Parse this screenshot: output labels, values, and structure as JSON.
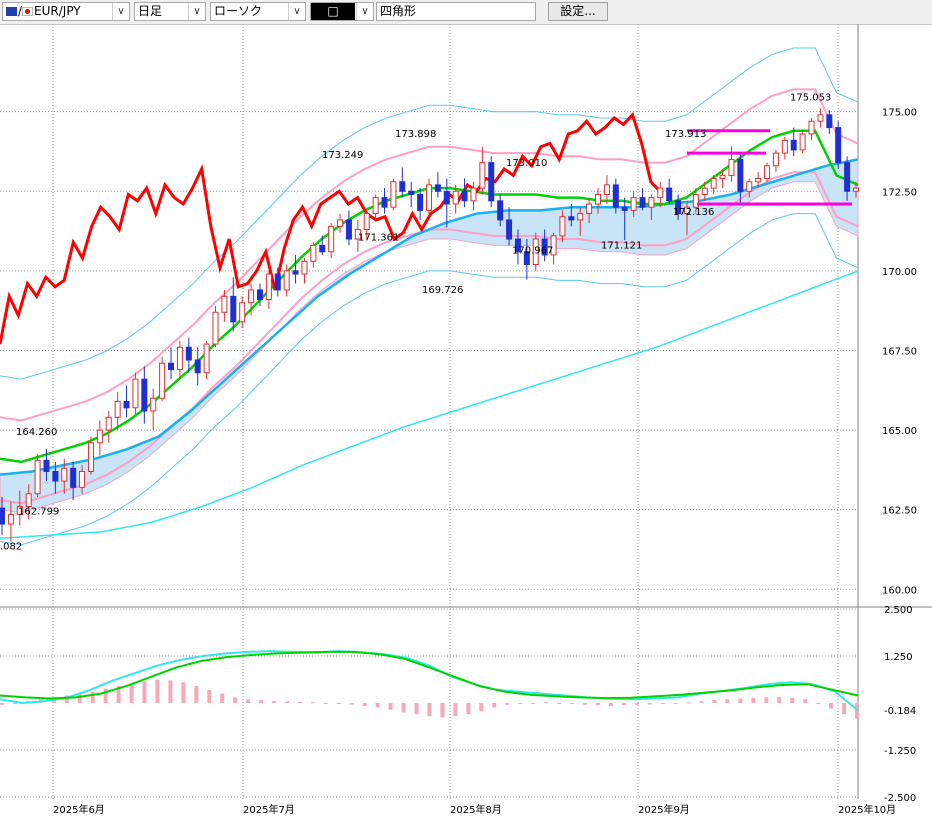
{
  "toolbar": {
    "symbol": "EUR/JPY",
    "timeframe": "日足",
    "chart_style": "ローソク",
    "draw_tool": "□",
    "shape_name": "四角形",
    "settings_label": "設定..."
  },
  "colors": {
    "price_line": "#ff0000",
    "bb_outer": "#5bc8f0",
    "bb_inner": "#ff9ec6",
    "mid_line": "#00d200",
    "base_line": "#1ab0f0",
    "long_ma": "#33e6ee",
    "cloud": "#c9e3f7",
    "bull_candle": "#e03030",
    "bear_candle": "#2030d0",
    "marker": "#ff00dd",
    "macd_hist": "#f6aab8"
  },
  "price_axis": {
    "labels": [
      "175.00",
      "172.50",
      "170.00",
      "167.50",
      "165.00",
      "162.50",
      "160.00"
    ]
  },
  "osc_axis": {
    "labels": [
      "2.500",
      "1.250",
      "-0.184",
      "-1.250",
      "-2.500"
    ]
  },
  "date_axis": {
    "labels": [
      "2025年6月",
      "2025年7月",
      "2025年8月",
      "2025年9月",
      "2025年10月"
    ]
  },
  "annotations": [
    "164.260",
    "162.799",
    ".082",
    "173.249",
    "173.898",
    "171.361",
    "173.010",
    "170.967",
    "169.726",
    "171.121",
    "173.913",
    "172.136",
    "175.053"
  ],
  "chart_data": [
    {
      "type": "candlestick",
      "title": "",
      "symbol": "EUR/JPY",
      "x_labels": [
        "2025年6月",
        "2025年7月",
        "2025年8月",
        "2025年9月",
        "2025年10月"
      ],
      "y_ticks": [
        175.0,
        172.5,
        170.0,
        167.5,
        165.0,
        162.5,
        160.0
      ],
      "ylim": [
        159.6,
        177.0
      ],
      "marked_points": [
        {
          "label": "164.260",
          "value": 164.26
        },
        {
          "label": "162.799",
          "value": 162.799
        },
        {
          "label": "173.249",
          "value": 173.249
        },
        {
          "label": "173.898",
          "value": 173.898
        },
        {
          "label": "171.361",
          "value": 171.361
        },
        {
          "label": "173.010",
          "value": 173.01
        },
        {
          "label": "170.967",
          "value": 170.967
        },
        {
          "label": "169.726",
          "value": 169.726
        },
        {
          "label": "171.121",
          "value": 171.121
        },
        {
          "label": "173.913",
          "value": 173.913
        },
        {
          "label": "172.136",
          "value": 172.136
        },
        {
          "label": "175.053",
          "value": 175.053
        }
      ],
      "candles": [
        [
          162.55,
          162.9,
          161.7,
          162.05
        ],
        [
          162.05,
          162.75,
          161.5,
          162.35
        ],
        [
          162.35,
          163.1,
          162.0,
          162.6
        ],
        [
          162.6,
          163.3,
          162.2,
          163.0
        ],
        [
          163.0,
          164.26,
          162.9,
          164.05
        ],
        [
          164.05,
          164.4,
          163.4,
          163.7
        ],
        [
          163.7,
          164.0,
          163.0,
          163.4
        ],
        [
          163.4,
          164.1,
          163.0,
          163.8
        ],
        [
          163.8,
          164.0,
          162.799,
          163.2
        ],
        [
          163.2,
          163.9,
          163.0,
          163.7
        ],
        [
          163.7,
          164.8,
          163.6,
          164.6
        ],
        [
          164.6,
          165.3,
          164.2,
          165.0
        ],
        [
          165.0,
          165.6,
          164.6,
          165.4
        ],
        [
          165.4,
          166.2,
          165.0,
          165.9
        ],
        [
          165.9,
          166.4,
          165.4,
          165.7
        ],
        [
          165.7,
          166.8,
          165.5,
          166.6
        ],
        [
          166.6,
          167.0,
          165.2,
          165.6
        ],
        [
          165.6,
          166.3,
          165.0,
          166.0
        ],
        [
          166.0,
          167.3,
          165.9,
          167.1
        ],
        [
          167.1,
          167.6,
          166.6,
          166.9
        ],
        [
          166.9,
          167.8,
          166.6,
          167.6
        ],
        [
          167.6,
          167.9,
          166.8,
          167.2
        ],
        [
          167.2,
          167.6,
          166.4,
          166.8
        ],
        [
          166.8,
          167.8,
          166.6,
          167.7
        ],
        [
          167.7,
          168.9,
          167.6,
          168.7
        ],
        [
          168.7,
          169.4,
          168.4,
          169.2
        ],
        [
          169.2,
          169.8,
          168.1,
          168.4
        ],
        [
          168.4,
          169.2,
          168.2,
          169.0
        ],
        [
          169.0,
          169.6,
          168.6,
          169.4
        ],
        [
          169.4,
          169.6,
          168.9,
          169.1
        ],
        [
          169.1,
          170.0,
          168.8,
          169.9
        ],
        [
          169.9,
          170.1,
          169.2,
          169.4
        ],
        [
          169.4,
          170.2,
          169.2,
          170.0
        ],
        [
          170.0,
          170.5,
          169.6,
          169.9
        ],
        [
          169.9,
          170.4,
          169.6,
          170.3
        ],
        [
          170.3,
          170.9,
          170.1,
          170.8
        ],
        [
          170.8,
          171.1,
          170.5,
          170.6
        ],
        [
          170.6,
          171.5,
          170.4,
          171.4
        ],
        [
          171.4,
          171.8,
          171.2,
          171.6
        ],
        [
          171.6,
          171.9,
          170.8,
          171.0
        ],
        [
          171.0,
          171.6,
          170.6,
          171.3
        ],
        [
          171.3,
          171.9,
          171.0,
          171.8
        ],
        [
          171.8,
          172.4,
          171.6,
          172.3
        ],
        [
          172.3,
          172.6,
          171.8,
          172.0
        ],
        [
          172.0,
          172.9,
          171.9,
          172.8
        ],
        [
          172.8,
          173.249,
          172.3,
          172.5
        ],
        [
          172.5,
          172.8,
          172.0,
          172.4
        ],
        [
          172.4,
          172.6,
          171.6,
          171.9
        ],
        [
          171.9,
          172.9,
          171.7,
          172.7
        ],
        [
          172.7,
          173.1,
          172.3,
          172.5
        ],
        [
          172.5,
          172.9,
          171.361,
          172.1
        ],
        [
          172.1,
          172.7,
          171.8,
          172.5
        ],
        [
          172.5,
          172.9,
          172.0,
          172.2
        ],
        [
          172.2,
          172.8,
          171.9,
          172.6
        ],
        [
          172.6,
          173.898,
          172.4,
          173.4
        ],
        [
          173.4,
          173.6,
          172.0,
          172.2
        ],
        [
          172.2,
          172.4,
          171.4,
          171.6
        ],
        [
          171.6,
          172.0,
          170.8,
          171.0
        ],
        [
          171.0,
          171.3,
          170.2,
          170.6
        ],
        [
          170.6,
          171.0,
          169.726,
          170.2
        ],
        [
          170.2,
          171.2,
          170.0,
          171.0
        ],
        [
          171.0,
          171.3,
          170.3,
          170.5
        ],
        [
          170.5,
          171.2,
          170.2,
          171.1
        ],
        [
          171.1,
          171.9,
          170.9,
          171.7
        ],
        [
          171.7,
          172.1,
          171.4,
          171.6
        ],
        [
          171.6,
          172.0,
          171.1,
          171.8
        ],
        [
          171.8,
          172.3,
          171.5,
          172.1
        ],
        [
          172.1,
          172.6,
          171.8,
          172.4
        ],
        [
          172.4,
          173.01,
          172.1,
          172.7
        ],
        [
          172.7,
          172.9,
          171.8,
          172.0
        ],
        [
          172.0,
          172.3,
          170.967,
          171.9
        ],
        [
          171.9,
          172.5,
          171.7,
          172.3
        ],
        [
          172.3,
          172.6,
          171.9,
          172.0
        ],
        [
          172.0,
          172.4,
          171.6,
          172.3
        ],
        [
          172.3,
          172.8,
          172.0,
          172.6
        ],
        [
          172.6,
          172.9,
          172.1,
          172.2
        ],
        [
          172.2,
          172.4,
          171.6,
          171.8
        ],
        [
          171.8,
          172.2,
          171.121,
          172.0
        ],
        [
          172.0,
          172.6,
          171.8,
          172.4
        ],
        [
          172.4,
          172.8,
          172.2,
          172.6
        ],
        [
          172.6,
          173.0,
          172.4,
          172.9
        ],
        [
          172.9,
          173.2,
          172.6,
          173.0
        ],
        [
          173.0,
          173.913,
          172.8,
          173.5
        ],
        [
          173.5,
          173.7,
          172.136,
          172.5
        ],
        [
          172.5,
          172.9,
          172.3,
          172.8
        ],
        [
          172.8,
          173.1,
          172.6,
          172.9
        ],
        [
          172.9,
          173.4,
          172.8,
          173.3
        ],
        [
          173.3,
          173.8,
          173.1,
          173.7
        ],
        [
          173.7,
          174.2,
          173.5,
          174.1
        ],
        [
          174.1,
          174.5,
          173.6,
          173.8
        ],
        [
          173.8,
          174.4,
          173.7,
          174.3
        ],
        [
          174.3,
          174.8,
          174.1,
          174.7
        ],
        [
          174.7,
          175.1,
          174.5,
          174.9
        ],
        [
          174.9,
          175.053,
          174.3,
          174.5
        ],
        [
          174.5,
          174.7,
          173.2,
          173.4
        ],
        [
          173.4,
          173.6,
          172.2,
          172.5
        ],
        [
          172.5,
          172.8,
          172.3,
          172.6
        ]
      ],
      "series": [
        {
          "name": "",
          "color": "#ff0000",
          "values": [
            167.7,
            169.2,
            168.6,
            169.6,
            169.2,
            169.8,
            169.5,
            169.7,
            170.9,
            170.4,
            171.4,
            172.0,
            171.7,
            171.3,
            172.4,
            172.2,
            172.6,
            171.8,
            172.7,
            172.3,
            172.1,
            172.6,
            173.2,
            171.4,
            170.1,
            171.0,
            169.5,
            169.6,
            170.0,
            170.6,
            169.4,
            170.7,
            171.6,
            172.0,
            171.4,
            172.1,
            172.3,
            172.5,
            172.1,
            172.3,
            171.8,
            171.6,
            171.7,
            171.0,
            171.2,
            171.8,
            171.3,
            171.8,
            172.0,
            172.4,
            172.2,
            172.7,
            172.5,
            172.9,
            172.8,
            173.2,
            173.0,
            173.6,
            173.3,
            173.9,
            174.0,
            173.5,
            174.3,
            174.4,
            174.7,
            174.3,
            174.5,
            174.8,
            174.6,
            174.9,
            174.0,
            172.8,
            172.5
          ]
        },
        {
          "name": "",
          "color": "#00d200",
          "values": [
            164.1,
            164.0,
            164.2,
            164.4,
            164.6,
            164.9,
            165.3,
            165.8,
            166.4,
            167.0,
            167.7,
            168.3,
            169.0,
            169.7,
            170.4,
            171.0,
            171.5,
            171.9,
            172.2,
            172.4,
            172.6,
            172.6,
            172.5,
            172.4,
            172.4,
            172.4,
            172.3,
            172.3,
            172.2,
            172.2,
            172.1,
            172.1,
            172.3,
            172.8,
            173.3,
            173.8,
            174.2,
            174.4,
            174.4,
            173.0,
            172.7
          ]
        },
        {
          "name": "",
          "color": "#1ab0f0",
          "values": [
            163.6,
            163.7,
            163.9,
            164.1,
            164.4,
            164.8,
            165.6,
            166.5,
            167.4,
            168.3,
            169.2,
            169.9,
            170.5,
            171.1,
            171.5,
            171.8,
            171.9,
            171.9,
            172.0,
            172.0,
            172.0,
            172.1,
            172.2,
            172.4,
            172.7,
            173.0,
            173.3,
            173.5
          ]
        },
        {
          "name": "",
          "color": "#33e6ee",
          "values": [
            161.6,
            161.7,
            161.8,
            162.1,
            162.6,
            163.2,
            163.9,
            164.5,
            165.1,
            165.6,
            166.1,
            166.6,
            167.1,
            167.6,
            168.2,
            168.8,
            169.4,
            170.0
          ]
        }
      ],
      "macd": {
        "ylim": [
          -2.5,
          2.5
        ],
        "y_ticks": [
          2.5,
          1.25,
          -0.184,
          -1.25,
          -2.5
        ],
        "current": -0.184,
        "histogram": [
          -0.05,
          0.0,
          0.05,
          0.1,
          0.15,
          0.2,
          0.25,
          0.3,
          0.38,
          0.45,
          0.52,
          0.58,
          0.62,
          0.6,
          0.55,
          0.45,
          0.35,
          0.25,
          0.15,
          0.1,
          0.08,
          0.05,
          0.04,
          0.03,
          0.02,
          0.0,
          -0.02,
          -0.04,
          -0.08,
          -0.12,
          -0.18,
          -0.25,
          -0.3,
          -0.35,
          -0.38,
          -0.35,
          -0.3,
          -0.22,
          -0.12,
          -0.05,
          -0.02,
          0.0,
          0.02,
          0.0,
          -0.02,
          -0.05,
          -0.06,
          -0.08,
          -0.06,
          -0.05,
          -0.04,
          -0.02,
          0.0,
          0.02,
          0.05,
          0.08,
          0.1,
          0.12,
          0.14,
          0.15,
          0.16,
          0.14,
          0.1,
          0.0,
          -0.15,
          -0.3,
          -0.42
        ]
      }
    }
  ]
}
